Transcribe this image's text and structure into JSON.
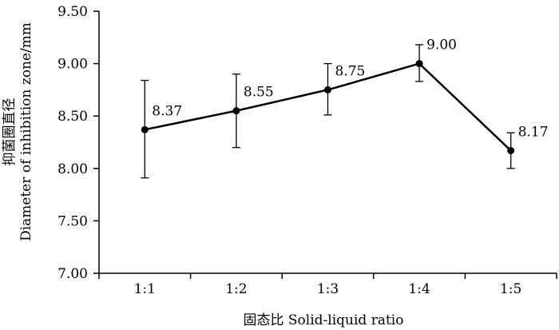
{
  "chart_data": {
    "type": "line",
    "categories": [
      "1:1",
      "1:2",
      "1:3",
      "1:4",
      "1:5"
    ],
    "series": [
      {
        "values": [
          8.37,
          8.55,
          8.75,
          9.0,
          8.17
        ],
        "labels": [
          "8.37",
          "8.55",
          "8.75",
          "9.00",
          "8.17"
        ],
        "error_low": [
          7.91,
          8.2,
          8.51,
          8.83,
          8.0
        ],
        "error_high": [
          8.84,
          8.9,
          9.0,
          9.18,
          8.34
        ]
      }
    ],
    "yticks": [
      "7.00",
      "7.50",
      "8.00",
      "8.50",
      "9.00",
      "9.50"
    ],
    "ylim": [
      7.0,
      9.5
    ],
    "xlabel": "固态比 Solid-liquid ratio",
    "ylabel_line1": "抑菌圈直径",
    "ylabel_line2": "Diameter of inhibition zone/mm",
    "grid": false,
    "legend": false,
    "colors": {
      "line": "#000000",
      "axis": "#000000"
    }
  }
}
